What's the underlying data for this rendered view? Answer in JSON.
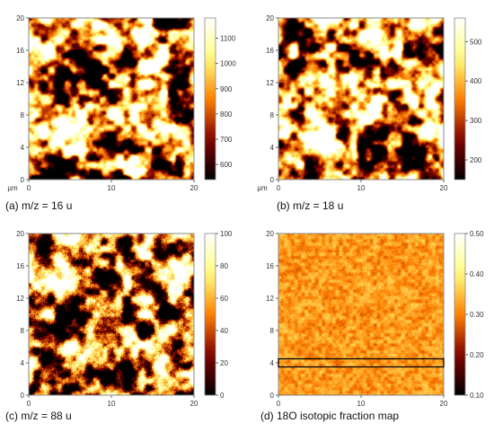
{
  "chart_data": [
    {
      "type": "heatmap",
      "caption": "(a) m/z = 16 u",
      "x_ticks": [
        0,
        10,
        20
      ],
      "y_ticks": [
        0,
        4,
        8,
        12,
        16,
        20
      ],
      "xlim": [
        0,
        20
      ],
      "ylim": [
        0,
        20
      ],
      "x_unit": "µm",
      "colorbar": {
        "range": [
          540,
          1180
        ],
        "ticks": [
          600,
          700,
          800,
          900,
          1000,
          1100
        ]
      },
      "colormap": "afmhot",
      "texture": {
        "style": "blobs",
        "mean_level": 0.5
      }
    },
    {
      "type": "heatmap",
      "caption": "(b) m/z = 18 u",
      "x_ticks": [
        0,
        10,
        20
      ],
      "y_ticks": [
        0,
        4,
        8,
        12,
        16,
        20
      ],
      "xlim": [
        0,
        20
      ],
      "ylim": [
        0,
        20
      ],
      "x_unit": "µm",
      "colorbar": {
        "range": [
          150,
          560
        ],
        "ticks": [
          200,
          300,
          400,
          500
        ]
      },
      "colormap": "afmhot",
      "texture": {
        "style": "blobs",
        "mean_level": 0.5
      }
    },
    {
      "type": "heatmap",
      "caption": "(c) m/z = 88 u",
      "x_ticks": [
        0,
        10,
        20
      ],
      "y_ticks": [
        0,
        4,
        8,
        12,
        16,
        20
      ],
      "xlim": [
        0,
        20
      ],
      "ylim": [
        0,
        20
      ],
      "colorbar": {
        "range": [
          0,
          100
        ],
        "ticks": [
          0,
          20,
          40,
          60,
          80,
          100
        ]
      },
      "colormap": "afmhot",
      "texture": {
        "style": "speckled-blobs",
        "mean_level": 0.45
      }
    },
    {
      "type": "heatmap",
      "caption": "(d) 18O isotopic fraction map",
      "x_ticks": [
        0,
        10,
        20
      ],
      "y_ticks": [
        0,
        4,
        8,
        12,
        16,
        20
      ],
      "xlim": [
        0,
        20
      ],
      "ylim": [
        0,
        20
      ],
      "colorbar": {
        "range": [
          0.1,
          0.5
        ],
        "ticks": [
          "0.10",
          "0.20",
          "0.30",
          "0.40",
          "0.50"
        ]
      },
      "colormap": "afmhot",
      "texture": {
        "style": "uniform-noise",
        "mean_level": 0.55
      },
      "highlight_box": {
        "x": [
          0,
          20
        ],
        "y": [
          3.5,
          4.5
        ]
      }
    }
  ]
}
